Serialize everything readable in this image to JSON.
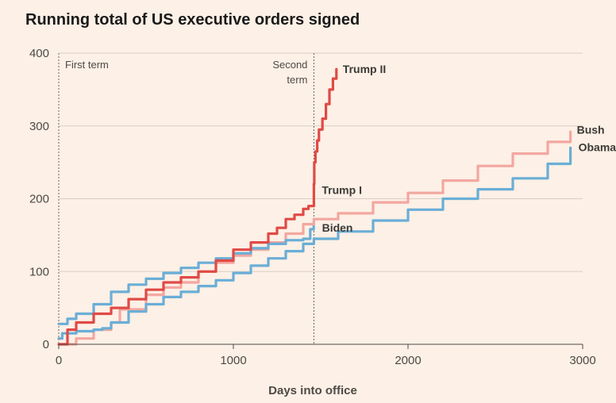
{
  "chart_data": {
    "type": "line",
    "title": "Running total of US executive orders signed",
    "xlabel": "Days into office",
    "ylabel": "",
    "xlim": [
      0,
      3000
    ],
    "ylim": [
      0,
      400
    ],
    "xticks": [
      0,
      1000,
      2000,
      3000
    ],
    "yticks": [
      0,
      100,
      200,
      300,
      400
    ],
    "grid": "horizontal",
    "annotations": [
      {
        "name": "first-term",
        "x": 0,
        "text_lines": [
          "First term"
        ]
      },
      {
        "name": "second-term",
        "x": 1461,
        "text_lines": [
          "Second",
          "term"
        ]
      }
    ],
    "series": [
      {
        "name": "Bush",
        "label": "Bush",
        "color": "#f2a7a0",
        "points": [
          [
            0,
            0
          ],
          [
            100,
            8
          ],
          [
            200,
            20
          ],
          [
            300,
            30
          ],
          [
            350,
            48
          ],
          [
            500,
            68
          ],
          [
            600,
            78
          ],
          [
            700,
            85
          ],
          [
            800,
            100
          ],
          [
            900,
            112
          ],
          [
            1000,
            122
          ],
          [
            1100,
            130
          ],
          [
            1200,
            140
          ],
          [
            1300,
            152
          ],
          [
            1400,
            165
          ],
          [
            1461,
            172
          ],
          [
            1600,
            180
          ],
          [
            1800,
            195
          ],
          [
            2000,
            208
          ],
          [
            2200,
            225
          ],
          [
            2400,
            245
          ],
          [
            2600,
            262
          ],
          [
            2800,
            278
          ],
          [
            2930,
            292
          ]
        ]
      },
      {
        "name": "Obama",
        "label": "Obama",
        "color": "#6aaed6",
        "points": [
          [
            0,
            8
          ],
          [
            20,
            15
          ],
          [
            100,
            18
          ],
          [
            200,
            20
          ],
          [
            250,
            22
          ],
          [
            300,
            30
          ],
          [
            400,
            45
          ],
          [
            500,
            55
          ],
          [
            600,
            65
          ],
          [
            700,
            72
          ],
          [
            800,
            80
          ],
          [
            900,
            88
          ],
          [
            1000,
            98
          ],
          [
            1100,
            108
          ],
          [
            1200,
            118
          ],
          [
            1300,
            128
          ],
          [
            1400,
            138
          ],
          [
            1461,
            145
          ],
          [
            1600,
            155
          ],
          [
            1800,
            170
          ],
          [
            2000,
            185
          ],
          [
            2200,
            200
          ],
          [
            2400,
            213
          ],
          [
            2600,
            228
          ],
          [
            2800,
            248
          ],
          [
            2930,
            270
          ]
        ]
      },
      {
        "name": "Trump I",
        "label": "Trump I",
        "color": "#e04a46",
        "points": [
          [
            0,
            0
          ],
          [
            50,
            20
          ],
          [
            100,
            30
          ],
          [
            200,
            42
          ],
          [
            300,
            50
          ],
          [
            400,
            62
          ],
          [
            500,
            75
          ],
          [
            600,
            85
          ],
          [
            700,
            92
          ],
          [
            800,
            100
          ],
          [
            900,
            115
          ],
          [
            1000,
            130
          ],
          [
            1100,
            140
          ],
          [
            1200,
            152
          ],
          [
            1250,
            160
          ],
          [
            1300,
            172
          ],
          [
            1350,
            178
          ],
          [
            1400,
            186
          ],
          [
            1430,
            190
          ],
          [
            1461,
            220
          ]
        ]
      },
      {
        "name": "Trump II",
        "label": "Trump II",
        "color": "#e04a46",
        "points": [
          [
            1461,
            220
          ],
          [
            1463,
            250
          ],
          [
            1470,
            265
          ],
          [
            1480,
            280
          ],
          [
            1490,
            295
          ],
          [
            1510,
            310
          ],
          [
            1530,
            330
          ],
          [
            1550,
            350
          ],
          [
            1570,
            365
          ],
          [
            1590,
            378
          ]
        ]
      },
      {
        "name": "Biden",
        "label": "Biden",
        "color": "#6aaed6",
        "points": [
          [
            0,
            28
          ],
          [
            50,
            35
          ],
          [
            100,
            42
          ],
          [
            200,
            55
          ],
          [
            300,
            72
          ],
          [
            400,
            82
          ],
          [
            500,
            90
          ],
          [
            600,
            98
          ],
          [
            700,
            105
          ],
          [
            800,
            112
          ],
          [
            900,
            118
          ],
          [
            1000,
            125
          ],
          [
            1100,
            132
          ],
          [
            1200,
            138
          ],
          [
            1300,
            143
          ],
          [
            1400,
            145
          ],
          [
            1440,
            158
          ],
          [
            1460,
            162
          ]
        ]
      }
    ]
  }
}
